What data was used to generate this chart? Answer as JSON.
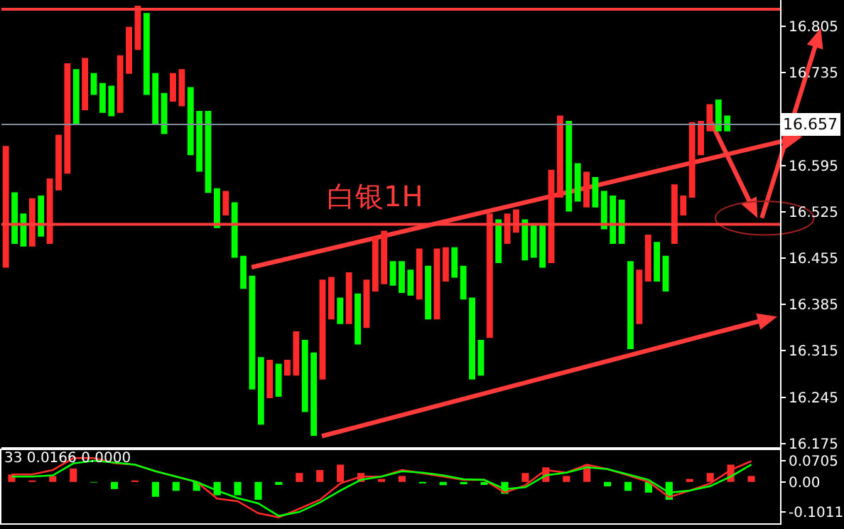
{
  "chart_data": [
    {
      "type": "candlestick",
      "tick_labels": "y",
      "grid": false,
      "categories": [
        null,
        null,
        null,
        null,
        null,
        null,
        null,
        null,
        null,
        null,
        null,
        null,
        null,
        null,
        null,
        null,
        null,
        null,
        null,
        null,
        null,
        null,
        null,
        null,
        null,
        null,
        null,
        null,
        null,
        null,
        null,
        null,
        null,
        null,
        null,
        null,
        null,
        null,
        null,
        null,
        null,
        null,
        null,
        null,
        null,
        null,
        null,
        null,
        null,
        null,
        null,
        null,
        null,
        null,
        null,
        null,
        null,
        null,
        null,
        null,
        null,
        null,
        null,
        null,
        null,
        null,
        null,
        null,
        null,
        null,
        null,
        null,
        null,
        null,
        null,
        null,
        null,
        null,
        null,
        null,
        null,
        null,
        null
      ],
      "ohlc": [
        [
          16.442,
          16.623,
          16.442,
          16.623
        ],
        [
          16.553,
          16.553,
          16.478,
          16.478
        ],
        [
          16.521,
          16.521,
          16.474,
          16.474
        ],
        [
          16.474,
          16.544,
          16.474,
          16.544
        ],
        [
          16.548,
          16.548,
          16.489,
          16.489
        ],
        [
          16.478,
          16.574,
          16.478,
          16.574
        ],
        [
          16.559,
          16.64,
          16.559,
          16.64
        ],
        [
          16.584,
          16.748,
          16.584,
          16.748
        ],
        [
          16.739,
          16.739,
          16.659,
          16.659
        ],
        [
          16.68,
          16.756,
          16.68,
          16.756
        ],
        [
          16.733,
          16.733,
          16.703,
          16.703
        ],
        [
          16.718,
          16.718,
          16.676,
          16.676
        ],
        [
          16.714,
          16.714,
          16.671,
          16.671
        ],
        [
          16.676,
          16.76,
          16.676,
          16.76
        ],
        [
          16.735,
          16.803,
          16.735,
          16.803
        ],
        [
          16.771,
          16.835,
          16.771,
          16.835
        ],
        [
          16.824,
          16.824,
          16.703,
          16.703
        ],
        [
          16.733,
          16.733,
          16.659,
          16.659
        ],
        [
          16.703,
          16.703,
          16.644,
          16.644
        ],
        [
          16.693,
          16.733,
          16.693,
          16.733
        ],
        [
          16.686,
          16.739,
          16.686,
          16.739
        ],
        [
          16.712,
          16.712,
          16.612,
          16.612
        ],
        [
          16.676,
          16.676,
          16.587,
          16.587
        ],
        [
          16.676,
          16.676,
          16.555,
          16.555
        ],
        [
          16.559,
          16.559,
          16.502,
          16.502
        ],
        [
          16.521,
          16.555,
          16.521,
          16.555
        ],
        [
          16.538,
          16.538,
          16.457,
          16.457
        ],
        [
          16.457,
          16.457,
          16.41,
          16.41
        ],
        [
          16.427,
          16.427,
          16.258,
          16.258
        ],
        [
          16.304,
          16.304,
          16.205,
          16.205
        ],
        [
          16.245,
          16.3,
          16.245,
          16.3
        ],
        [
          16.294,
          16.294,
          16.247,
          16.247
        ],
        [
          16.279,
          16.3,
          16.279,
          16.3
        ],
        [
          16.279,
          16.343,
          16.279,
          16.343
        ],
        [
          16.33,
          16.33,
          16.224,
          16.224
        ],
        [
          16.311,
          16.311,
          16.188,
          16.188
        ],
        [
          16.273,
          16.421,
          16.273,
          16.421
        ],
        [
          16.364,
          16.425,
          16.364,
          16.425
        ],
        [
          16.394,
          16.394,
          16.357,
          16.357
        ],
        [
          16.357,
          16.432,
          16.357,
          16.432
        ],
        [
          16.4,
          16.4,
          16.326,
          16.326
        ],
        [
          16.351,
          16.421,
          16.351,
          16.421
        ],
        [
          16.406,
          16.485,
          16.406,
          16.485
        ],
        [
          16.417,
          16.495,
          16.417,
          16.495
        ],
        [
          16.449,
          16.449,
          16.415,
          16.415
        ],
        [
          16.449,
          16.449,
          16.404,
          16.404
        ],
        [
          16.436,
          16.436,
          16.4,
          16.4
        ],
        [
          16.394,
          16.468,
          16.394,
          16.468
        ],
        [
          16.442,
          16.442,
          16.364,
          16.364
        ],
        [
          16.364,
          16.468,
          16.364,
          16.468
        ],
        [
          16.421,
          16.47,
          16.421,
          16.47
        ],
        [
          16.47,
          16.47,
          16.427,
          16.427
        ],
        [
          16.442,
          16.442,
          16.394,
          16.394
        ],
        [
          16.394,
          16.394,
          16.273,
          16.273
        ],
        [
          16.33,
          16.33,
          16.279,
          16.279
        ],
        [
          16.336,
          16.521,
          16.336,
          16.521
        ],
        [
          16.512,
          16.512,
          16.449,
          16.449
        ],
        [
          16.478,
          16.521,
          16.478,
          16.521
        ],
        [
          16.495,
          16.527,
          16.495,
          16.527
        ],
        [
          16.512,
          16.512,
          16.453,
          16.453
        ],
        [
          16.506,
          16.506,
          16.457,
          16.457
        ],
        [
          16.506,
          16.506,
          16.442,
          16.442
        ],
        [
          16.449,
          16.587,
          16.449,
          16.587
        ],
        [
          16.548,
          16.669,
          16.548,
          16.669
        ],
        [
          16.661,
          16.661,
          16.527,
          16.527
        ],
        [
          16.597,
          16.597,
          16.542,
          16.542
        ],
        [
          16.533,
          16.584,
          16.533,
          16.584
        ],
        [
          16.576,
          16.576,
          16.533,
          16.533
        ],
        [
          16.555,
          16.555,
          16.5,
          16.5
        ],
        [
          16.548,
          16.548,
          16.478,
          16.478
        ],
        [
          16.542,
          16.542,
          16.478,
          16.478
        ],
        [
          16.449,
          16.449,
          16.319,
          16.319
        ],
        [
          16.357,
          16.436,
          16.357,
          16.436
        ],
        [
          16.421,
          16.489,
          16.421,
          16.489
        ],
        [
          16.478,
          16.478,
          16.421,
          16.421
        ],
        [
          16.457,
          16.457,
          16.406,
          16.406
        ],
        [
          16.478,
          16.565,
          16.478,
          16.565
        ],
        [
          16.521,
          16.548,
          16.521,
          16.548
        ],
        [
          16.548,
          16.659,
          16.548,
          16.659
        ],
        [
          16.612,
          16.661,
          16.612,
          16.661
        ],
        [
          16.648,
          16.686,
          16.648,
          16.686
        ],
        [
          16.693,
          16.693,
          16.648,
          16.648
        ],
        [
          16.669,
          16.669,
          16.648,
          16.648
        ]
      ],
      "colors": [
        "#ff2a2a",
        "#00ff00",
        "#00ff00",
        "#ff2a2a",
        "#00ff00",
        "#ff2a2a",
        "#ff2a2a",
        "#ff2a2a",
        "#00ff00",
        "#ff2a2a",
        "#00ff00",
        "#00ff00",
        "#00ff00",
        "#ff2a2a",
        "#ff2a2a",
        "#ff2a2a",
        "#00ff00",
        "#00ff00",
        "#00ff00",
        "#ff2a2a",
        "#ff2a2a",
        "#00ff00",
        "#00ff00",
        "#00ff00",
        "#00ff00",
        "#ff2a2a",
        "#00ff00",
        "#00ff00",
        "#00ff00",
        "#00ff00",
        "#ff2a2a",
        "#00ff00",
        "#ff2a2a",
        "#ff2a2a",
        "#00ff00",
        "#00ff00",
        "#ff2a2a",
        "#ff2a2a",
        "#00ff00",
        "#ff2a2a",
        "#00ff00",
        "#ff2a2a",
        "#ff2a2a",
        "#ff2a2a",
        "#00ff00",
        "#00ff00",
        "#00ff00",
        "#ff2a2a",
        "#00ff00",
        "#ff2a2a",
        "#ff2a2a",
        "#00ff00",
        "#00ff00",
        "#00ff00",
        "#00ff00",
        "#ff2a2a",
        "#00ff00",
        "#ff2a2a",
        "#ff2a2a",
        "#00ff00",
        "#00ff00",
        "#00ff00",
        "#ff2a2a",
        "#ff2a2a",
        "#00ff00",
        "#00ff00",
        "#ff2a2a",
        "#00ff00",
        "#00ff00",
        "#00ff00",
        "#00ff00",
        "#00ff00",
        "#ff2a2a",
        "#ff2a2a",
        "#00ff00",
        "#00ff00",
        "#ff2a2a",
        "#ff2a2a",
        "#ff2a2a",
        "#ff2a2a",
        "#ff2a2a",
        "#00ff00",
        "#00ff00"
      ],
      "ylim": [
        16.169,
        16.845
      ],
      "yticks": [
        16.805,
        16.735,
        16.595,
        16.525,
        16.455,
        16.385,
        16.315,
        16.245,
        16.175
      ],
      "ref_lines": [
        {
          "axis": "y",
          "value": 16.831,
          "color": "#ff3b3b"
        },
        {
          "axis": "y",
          "value": 16.506,
          "color": "#ff3b3b"
        },
        {
          "axis": "y",
          "value": 16.657,
          "label": "16.657",
          "color": "#7f8c9c"
        }
      ],
      "annotations": [
        "白银1H"
      ]
    },
    {
      "type": "bar",
      "tick_labels": "y",
      "grid": false,
      "categories": [
        null,
        null,
        null,
        null,
        null,
        null,
        null,
        null,
        null,
        null,
        null,
        null,
        null,
        null,
        null,
        null,
        null,
        null,
        null,
        null,
        null,
        null,
        null,
        null,
        null,
        null,
        null,
        null,
        null,
        null,
        null,
        null,
        null,
        null,
        null,
        null,
        null
      ],
      "series": [
        {
          "type": "bar",
          "colors": [
            "#ff2a2a",
            "#ff2a2a",
            "#ff2a2a",
            "#ff2a2a",
            "#00ff00",
            "#00ff00",
            "#ff2a2a",
            "#00ff00",
            "#00ff00",
            "#00ff00",
            "#00ff00",
            "#00ff00",
            "#00ff00",
            "#00ff00",
            "#ff2a2a",
            "#ff2a2a",
            "#ff2a2a",
            "#ff2a2a",
            "#ff2a2a",
            "#ff2a2a",
            "#00ff00",
            "#00ff00",
            "#00ff00",
            "#00ff00",
            "#00ff00",
            "#ff2a2a",
            "#ff2a2a",
            "#ff2a2a",
            "#ff2a2a",
            "#00ff00",
            "#00ff00",
            "#00ff00",
            "#00ff00",
            "#ff2a2a",
            "#ff2a2a",
            "#ff2a2a",
            "#ff2a2a"
          ],
          "values": [
            0.025,
            0.005,
            0.02,
            0.045,
            -0.002,
            -0.024,
            0.005,
            -0.05,
            -0.03,
            -0.03,
            -0.045,
            -0.045,
            -0.06,
            -0.01,
            0.03,
            0.04,
            0.058,
            0.03,
            0.01,
            0.02,
            -0.005,
            -0.011,
            -0.008,
            -0.01,
            -0.04,
            0.03,
            0.049,
            0.02,
            0.058,
            -0.015,
            -0.03,
            -0.036,
            -0.06,
            0.01,
            0.03,
            0.058,
            0.02
          ]
        },
        {
          "type": "line",
          "color": "#ff2a2a",
          "values": [
            0.025,
            0.025,
            0.04,
            0.08,
            0.08,
            0.063,
            0.058,
            0.036,
            0.018,
            0,
            -0.056,
            -0.065,
            -0.105,
            -0.119,
            -0.09,
            -0.06,
            -0.005,
            0.018,
            0.018,
            0.04,
            0.029,
            0.018,
            0.007,
            0.007,
            -0.036,
            -0.011,
            0.04,
            0.031,
            0.058,
            0.043,
            0.022,
            0,
            -0.051,
            -0.029,
            -0.005,
            0.04,
            0.07
          ]
        },
        {
          "type": "line",
          "color": "#00ff00",
          "values": [
            0.018,
            0.018,
            0.022,
            0.062,
            0.071,
            0.065,
            0.058,
            0.036,
            0.018,
            0,
            -0.029,
            -0.054,
            -0.072,
            -0.114,
            -0.101,
            -0.069,
            -0.029,
            0.007,
            0.018,
            0.036,
            0.031,
            0.022,
            0.009,
            0.007,
            -0.024,
            -0.018,
            0.022,
            0.031,
            0.049,
            0.043,
            0.025,
            0.007,
            -0.036,
            -0.029,
            -0.014,
            0.018,
            0.058
          ]
        }
      ],
      "ylim": [
        -0.139,
        0.107
      ],
      "yticks": [
        0.0705,
        {
          "value": 0,
          "label": "0.00"
        },
        -0.1011
      ],
      "annotations": [
        "33 0.0166 0.0000"
      ]
    }
  ]
}
